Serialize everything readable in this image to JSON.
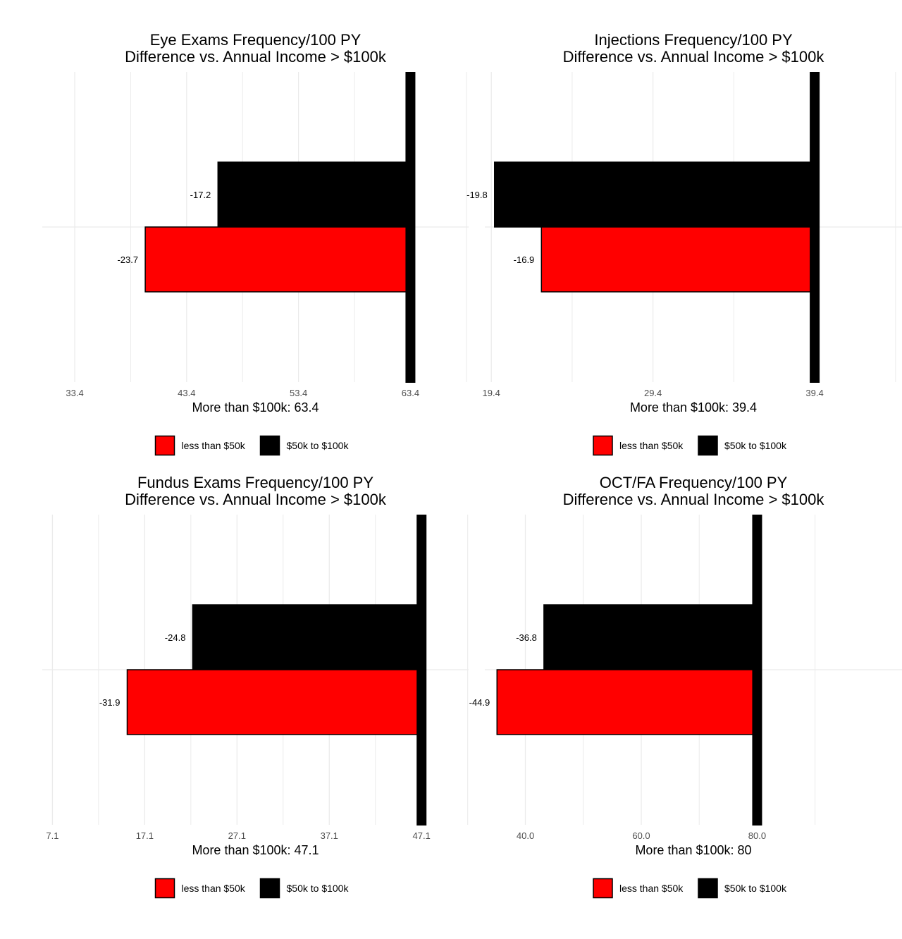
{
  "colors": {
    "less_than_50k": "#FF0000",
    "50k_to_100k": "#000000",
    "reference_bar": "#000000",
    "grid": "#EBEBEB",
    "tick_text": "#4D4D4D"
  },
  "legend": {
    "items": [
      "less than $50k",
      "$50k to $100k"
    ],
    "placement": "bottom"
  },
  "chart_data": [
    {
      "type": "bar",
      "orientation": "horizontal",
      "title": [
        "Eye Exams Frequency/100 PY",
        "Difference vs. Annual Income > $100k"
      ],
      "xlabel": "More than $100k: 63.4",
      "reference": 63.4,
      "xlim": [
        30.5,
        68.6
      ],
      "xticks": [
        "33.4",
        "43.4",
        "53.4",
        "63.4"
      ],
      "xtick_values": [
        33.4,
        43.4,
        53.4,
        63.4
      ],
      "series": [
        {
          "name": "less than $50k",
          "difference": -23.7,
          "label": "-23.7"
        },
        {
          "name": "$50k to $100k",
          "difference": -17.2,
          "label": "-17.2"
        }
      ],
      "grid": true
    },
    {
      "type": "bar",
      "orientation": "horizontal",
      "title": [
        "Injections Frequency/100 PY",
        "Difference vs. Annual Income > $100k"
      ],
      "xlabel": "More than $100k: 39.4",
      "reference": 39.4,
      "xlim": [
        19.0,
        44.8
      ],
      "xticks": [
        "19.4",
        "29.4",
        "39.4"
      ],
      "xtick_values": [
        19.4,
        29.4,
        39.4
      ],
      "series": [
        {
          "name": "less than $50k",
          "difference": -16.9,
          "label": "-16.9"
        },
        {
          "name": "$50k to $100k",
          "difference": -19.8,
          "label": "-19.8"
        }
      ],
      "grid": true
    },
    {
      "type": "bar",
      "orientation": "horizontal",
      "title": [
        "Fundus Exams Frequency/100 PY",
        "Difference vs. Annual Income > $100k"
      ],
      "xlabel": "More than $100k: 47.1",
      "reference": 47.1,
      "xlim": [
        6.0,
        52.2
      ],
      "xticks": [
        "7.1",
        "17.1",
        "27.1",
        "37.1",
        "47.1"
      ],
      "xtick_values": [
        7.1,
        17.1,
        27.1,
        37.1,
        47.1
      ],
      "series": [
        {
          "name": "less than $50k",
          "difference": -31.9,
          "label": "-31.9"
        },
        {
          "name": "$50k to $100k",
          "difference": -24.8,
          "label": "-24.8"
        }
      ],
      "grid": true
    },
    {
      "type": "bar",
      "orientation": "horizontal",
      "title": [
        "OCT/FA Frequency/100 PY",
        "Difference vs. Annual Income > $100k"
      ],
      "xlabel": "More than $100k: 80",
      "reference": 80.0,
      "xlim": [
        33.0,
        105.0
      ],
      "xticks": [
        "40.0",
        "60.0",
        "80.0"
      ],
      "xtick_values": [
        40.0,
        60.0,
        80.0
      ],
      "series": [
        {
          "name": "less than $50k",
          "difference": -44.9,
          "label": "-44.9"
        },
        {
          "name": "$50k to $100k",
          "difference": -36.8,
          "label": "-36.8"
        }
      ],
      "grid": true
    }
  ]
}
